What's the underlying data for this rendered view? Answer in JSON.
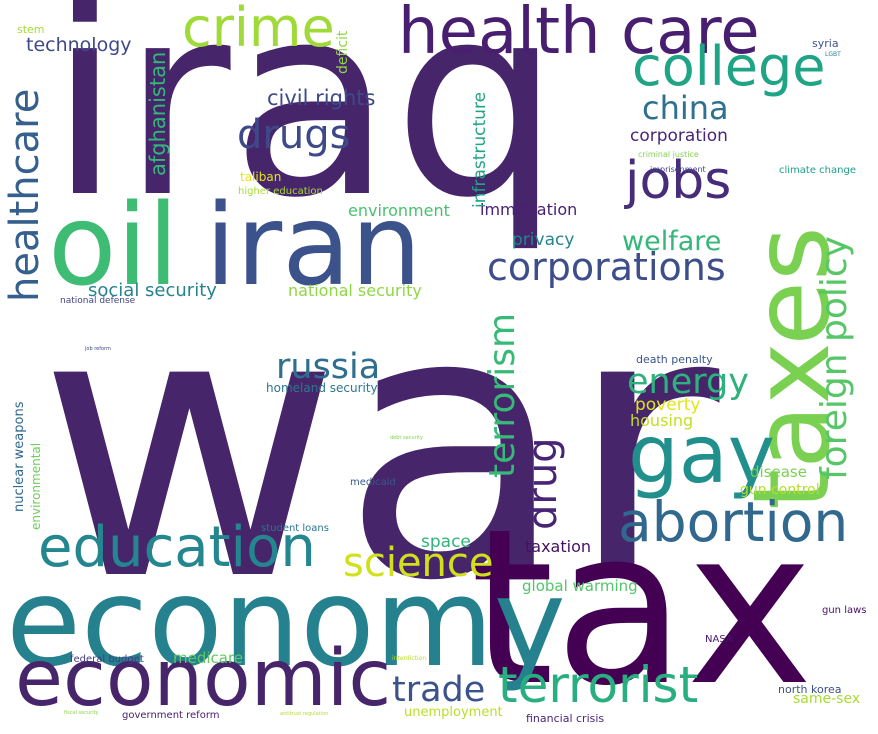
{
  "words": [
    {
      "text": "war",
      "color": "#46256b"
    },
    {
      "text": "iraq",
      "color": "#46256b"
    },
    {
      "text": "tax",
      "color": "#440154"
    },
    {
      "text": "economy",
      "color": "#25818e"
    },
    {
      "text": "iran",
      "color": "#3b528b"
    },
    {
      "text": "oil",
      "color": "#3fbc73"
    },
    {
      "text": "taxes",
      "color": "#7ad151"
    },
    {
      "text": "health care",
      "color": "#481f70"
    },
    {
      "text": "economic",
      "color": "#46256b"
    },
    {
      "text": "education",
      "color": "#24868e"
    },
    {
      "text": "terrorist",
      "color": "#29af7f"
    },
    {
      "text": "abortion",
      "color": "#31688e"
    },
    {
      "text": "college",
      "color": "#20a486"
    },
    {
      "text": "gay",
      "color": "#21908d"
    },
    {
      "text": "crime",
      "color": "#a0da39"
    },
    {
      "text": "jobs",
      "color": "#472c7a"
    },
    {
      "text": "corporations",
      "color": "#3d4e8a"
    },
    {
      "text": "foreign policy",
      "color": "#56c667"
    },
    {
      "text": "drugs",
      "color": "#3e4989"
    },
    {
      "text": "healthcare",
      "color": "#355f8d"
    },
    {
      "text": "science",
      "color": "#d0e11c"
    },
    {
      "text": "russia",
      "color": "#2e6e8e"
    },
    {
      "text": "energy",
      "color": "#2db27d"
    },
    {
      "text": "terrorism",
      "color": "#38b977"
    },
    {
      "text": "drug",
      "color": "#482475"
    },
    {
      "text": "trade",
      "color": "#3b528b"
    },
    {
      "text": "china",
      "color": "#2c728e"
    },
    {
      "text": "welfare",
      "color": "#35b779"
    },
    {
      "text": "civil rights",
      "color": "#3e4a89"
    },
    {
      "text": "afghanistan",
      "color": "#35b779"
    },
    {
      "text": "technology",
      "color": "#3e4989"
    },
    {
      "text": "infrastructure",
      "color": "#20a386"
    },
    {
      "text": "social security",
      "color": "#26828e"
    },
    {
      "text": "national security",
      "color": "#8fd744"
    },
    {
      "text": "environment",
      "color": "#48c16e"
    },
    {
      "text": "immigration",
      "color": "#482173"
    },
    {
      "text": "privacy",
      "color": "#25858e"
    },
    {
      "text": "corporation",
      "color": "#482677"
    },
    {
      "text": "deficit",
      "color": "#8fd744"
    },
    {
      "text": "taxation",
      "color": "#471063"
    },
    {
      "text": "space",
      "color": "#2fb47c"
    },
    {
      "text": "poverty",
      "color": "#e2e418"
    },
    {
      "text": "housing",
      "color": "#c2df23"
    },
    {
      "text": "disease",
      "color": "#7ad151"
    },
    {
      "text": "gun control",
      "color": "#b5de2b"
    },
    {
      "text": "global warming",
      "color": "#52c569"
    },
    {
      "text": "medicare",
      "color": "#5ec962"
    },
    {
      "text": "unemployment",
      "color": "#bade28"
    },
    {
      "text": "same-sex",
      "color": "#a8db34"
    },
    {
      "text": "homeland security",
      "color": "#2a788e"
    },
    {
      "text": "nuclear weapons",
      "color": "#31688e"
    },
    {
      "text": "environmental",
      "color": "#6ccd5a"
    },
    {
      "text": "death penalty",
      "color": "#39568c"
    },
    {
      "text": "climate change",
      "color": "#1fa088"
    },
    {
      "text": "north korea",
      "color": "#3b518b"
    },
    {
      "text": "financial crisis",
      "color": "#482878"
    },
    {
      "text": "federal budget",
      "color": "#443a83"
    },
    {
      "text": "government reform",
      "color": "#481c6e"
    },
    {
      "text": "medicaid",
      "color": "#38598c"
    },
    {
      "text": "student loans",
      "color": "#2a768e"
    },
    {
      "text": "higher education",
      "color": "#a8db34"
    },
    {
      "text": "taliban",
      "color": "#e5e419"
    },
    {
      "text": "national defense",
      "color": "#404688"
    },
    {
      "text": "stem",
      "color": "#a5db36"
    },
    {
      "text": "syria",
      "color": "#3a548c"
    },
    {
      "text": "gun laws",
      "color": "#471365"
    },
    {
      "text": "NASA",
      "color": "#481769"
    },
    {
      "text": "imprisonment",
      "color": "#3f4788"
    },
    {
      "text": "criminal justice",
      "color": "#7fd34e"
    },
    {
      "text": "LGBT",
      "color": "#26828e"
    },
    {
      "text": "job reform",
      "color": "#3e4989"
    },
    {
      "text": "debt security",
      "color": "#7fd34e"
    },
    {
      "text": "interdiction",
      "color": "#b8de29"
    },
    {
      "text": "fiscal security",
      "color": "#8bd646"
    },
    {
      "text": "antitrust regulation",
      "color": "#b5de2b"
    }
  ]
}
